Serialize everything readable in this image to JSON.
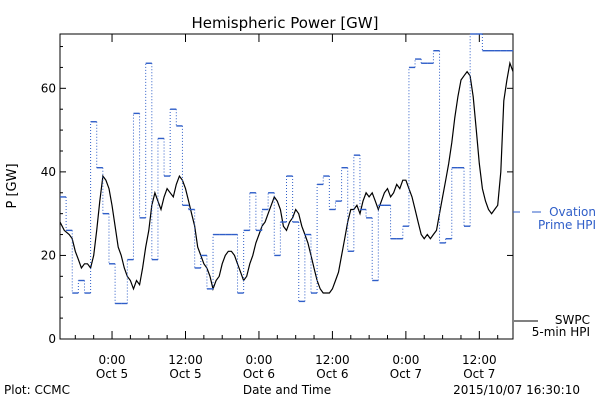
{
  "chart_data": {
    "type": "line",
    "title": "Hemispheric Power [GW]",
    "xlabel": "Date and Time",
    "ylabel": "P [GW]",
    "xlim": [
      -8.5,
      65.5
    ],
    "ylim": [
      0,
      73
    ],
    "grid": false,
    "legend_position": "right",
    "x_ticks": [
      {
        "x": 0,
        "time": "0:00",
        "date": "Oct 5"
      },
      {
        "x": 12,
        "time": "12:00",
        "date": "Oct 5"
      },
      {
        "x": 24,
        "time": "0:00",
        "date": "Oct 6"
      },
      {
        "x": 36,
        "time": "12:00",
        "date": "Oct 6"
      },
      {
        "x": 48,
        "time": "0:00",
        "date": "Oct 7"
      },
      {
        "x": 60,
        "time": "12:00",
        "date": "Oct 7"
      }
    ],
    "y_ticks": [
      0,
      20,
      40,
      60
    ],
    "series": [
      {
        "name": "SWPC 5-min HPI",
        "legend_lines": [
          "SWPC",
          "5-min HPI"
        ],
        "color": "#000000",
        "style": "solid",
        "x": [
          -8.5,
          -7.8,
          -7.0,
          -6.5,
          -6.0,
          -5.5,
          -5.0,
          -4.5,
          -4.0,
          -3.5,
          -3.0,
          -2.5,
          -2.0,
          -1.5,
          -1.0,
          -0.5,
          0.0,
          0.5,
          1.0,
          1.5,
          2.0,
          2.5,
          3.0,
          3.5,
          4.0,
          4.5,
          5.0,
          5.5,
          6.0,
          6.5,
          7.0,
          7.5,
          8.0,
          8.5,
          9.0,
          9.5,
          10.0,
          10.5,
          11.0,
          11.5,
          12.0,
          12.5,
          13.0,
          13.5,
          14.0,
          14.5,
          15.0,
          15.5,
          16.0,
          16.5,
          17.0,
          17.5,
          18.0,
          18.5,
          19.0,
          19.5,
          20.0,
          20.5,
          21.0,
          21.5,
          22.0,
          22.5,
          23.0,
          23.5,
          24.0,
          24.5,
          25.0,
          25.5,
          26.0,
          26.5,
          27.0,
          27.5,
          28.0,
          28.5,
          29.0,
          29.5,
          30.0,
          30.5,
          31.0,
          31.5,
          32.0,
          32.5,
          33.0,
          33.5,
          34.0,
          34.5,
          35.0,
          35.5,
          36.0,
          36.5,
          37.0,
          37.5,
          38.0,
          38.5,
          39.0,
          39.5,
          40.0,
          40.5,
          41.0,
          41.5,
          42.0,
          42.5,
          43.0,
          43.5,
          44.0,
          44.5,
          45.0,
          45.5,
          46.0,
          46.5,
          47.0,
          47.5,
          48.0,
          48.5,
          49.0,
          49.5,
          50.0,
          50.5,
          51.0,
          51.5,
          52.0,
          52.5,
          53.0,
          53.5,
          54.0,
          54.5,
          55.0,
          55.5,
          56.0,
          56.5,
          57.0,
          57.5,
          58.0,
          58.5,
          59.0,
          59.5,
          60.0,
          60.5,
          61.0,
          61.5,
          62.0,
          62.5,
          63.0,
          63.5,
          64.0,
          64.5,
          65.0,
          65.5
        ],
        "y": [
          28,
          26,
          25,
          24,
          21,
          19,
          17,
          18,
          18,
          17,
          20,
          26,
          33,
          39,
          38,
          36,
          32,
          27,
          22,
          20,
          17,
          15,
          14,
          12,
          14,
          13,
          17,
          22,
          26,
          32,
          35,
          33,
          31,
          34,
          36,
          35,
          34,
          37,
          39,
          38,
          36,
          33,
          30,
          27,
          22,
          20,
          18,
          17,
          15,
          12,
          14,
          15,
          18,
          20,
          21,
          21,
          20,
          18,
          16,
          14,
          15,
          18,
          20,
          23,
          25,
          27,
          28,
          30,
          32,
          34,
          33,
          31,
          27,
          26,
          28,
          29,
          31,
          30,
          27,
          25,
          23,
          20,
          17,
          14,
          12,
          11,
          11,
          11,
          12,
          14,
          16,
          20,
          24,
          28,
          31,
          31,
          32,
          30,
          33,
          35,
          34,
          35,
          33,
          31,
          33,
          35,
          36,
          34,
          35,
          37,
          36,
          38,
          38,
          36,
          34,
          31,
          28,
          25,
          24,
          25,
          24,
          25,
          26,
          30,
          34,
          38,
          42,
          47,
          53,
          58,
          62,
          63,
          64,
          63,
          58,
          50,
          42,
          36,
          33,
          31,
          30,
          31,
          32,
          40,
          57,
          62,
          66,
          64
        ]
      },
      {
        "name": "Ovation Prime HPI",
        "legend_lines": [
          "Ovation",
          "Prime HPI"
        ],
        "color": "#2f5ec8",
        "style": "step-dotted",
        "x": [
          -8.5,
          -7.5,
          -6.5,
          -5.5,
          -4.5,
          -3.5,
          -2.5,
          -1.5,
          -0.5,
          0.5,
          1.5,
          2.5,
          3.5,
          4.5,
          5.5,
          6.5,
          7.5,
          8.5,
          9.5,
          10.5,
          11.5,
          12.5,
          13.5,
          14.5,
          15.5,
          16.5,
          17.5,
          18.5,
          19.5,
          20.5,
          21.5,
          22.5,
          23.5,
          24.5,
          25.5,
          26.5,
          27.5,
          28.5,
          29.5,
          30.5,
          31.5,
          32.5,
          33.5,
          34.5,
          35.5,
          36.5,
          37.5,
          38.5,
          39.5,
          40.5,
          41.5,
          42.5,
          43.5,
          44.5,
          45.5,
          46.5,
          47.5,
          48.5,
          49.5,
          50.5,
          51.5,
          52.5,
          53.5,
          54.5,
          55.5,
          56.5,
          57.5,
          58.5,
          59.5,
          60.5,
          61.5,
          62.5,
          63.5,
          64.5,
          65.5
        ],
        "y": [
          34,
          26,
          11,
          14,
          11,
          52,
          41,
          30,
          18,
          8.5,
          8.5,
          19,
          54,
          29,
          66,
          19,
          48,
          39,
          55,
          51,
          32,
          31,
          17,
          20,
          12,
          25,
          25,
          25,
          25,
          11,
          26,
          35,
          26,
          31,
          35,
          20,
          28,
          39,
          28,
          9,
          25,
          11,
          37,
          39,
          31,
          33,
          41,
          21,
          44,
          31,
          29,
          14,
          32,
          32,
          24,
          24,
          27,
          65,
          67,
          66,
          66,
          69,
          23,
          24,
          41,
          41,
          27,
          73,
          73,
          69,
          69,
          69,
          69,
          69,
          69
        ]
      }
    ]
  },
  "footer": {
    "plot_credit": "Plot: CCMC",
    "axis_caption": "Date and Time",
    "timestamp": "2015/10/07 16:30:10"
  }
}
